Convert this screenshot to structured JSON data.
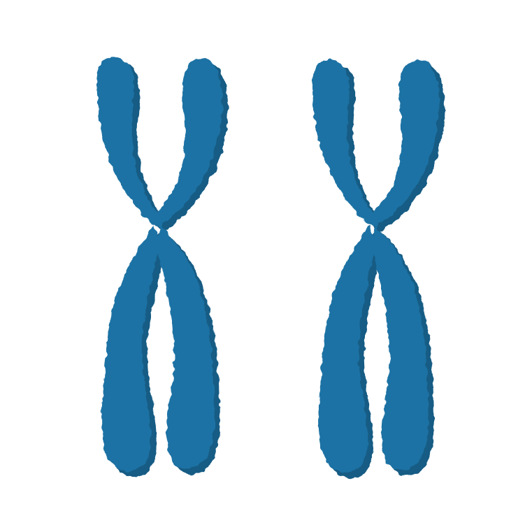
{
  "scene": {
    "subject": "chromosome-pair",
    "colors": {
      "background": "#ffffff",
      "body": "#1f72a4",
      "shadow": "#175b84"
    },
    "chromosomes": [
      {
        "name": "chromosome-left"
      },
      {
        "name": "chromosome-right"
      }
    ]
  }
}
